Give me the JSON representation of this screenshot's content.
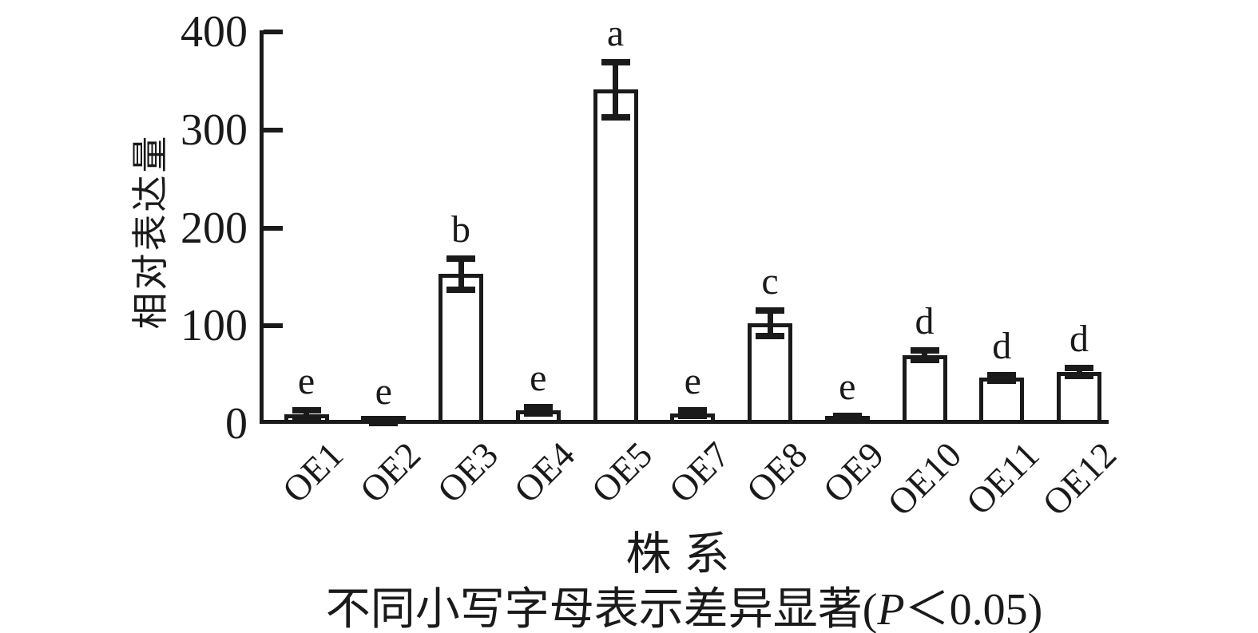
{
  "figure": {
    "background": "#ffffff",
    "ink_color": "#1a1a1a",
    "bar_fill": "#ffffff",
    "bar_border": "#1a1a1a"
  },
  "y_axis": {
    "title": "相对表达量",
    "ticks": [
      400,
      300,
      200,
      100,
      0
    ]
  },
  "x_axis": {
    "title": "株系"
  },
  "caption": {
    "pre": "不同小写字母表示差异显著(",
    "p_italic": "P",
    "post": "＜0.05)"
  },
  "chart_data": {
    "type": "bar",
    "title": "",
    "xlabel": "株系",
    "ylabel": "相对表达量",
    "ylim": [
      0,
      400
    ],
    "grid": false,
    "legend": "none",
    "categories": [
      "OE1",
      "OE2",
      "OE3",
      "OE4",
      "OE5",
      "OE7",
      "OE8",
      "OE9",
      "OE10",
      "OE11",
      "OE12"
    ],
    "values": [
      10,
      2,
      153,
      14,
      341,
      11,
      103,
      6,
      70,
      47,
      53
    ],
    "errors": [
      4,
      1,
      16,
      3,
      28,
      3,
      13,
      2,
      5,
      3,
      4
    ],
    "sig_letters": [
      "e",
      "e",
      "b",
      "e",
      "a",
      "e",
      "c",
      "e",
      "d",
      "d",
      "d"
    ],
    "note": "不同小写字母表示差异显著(P＜0.05)"
  }
}
